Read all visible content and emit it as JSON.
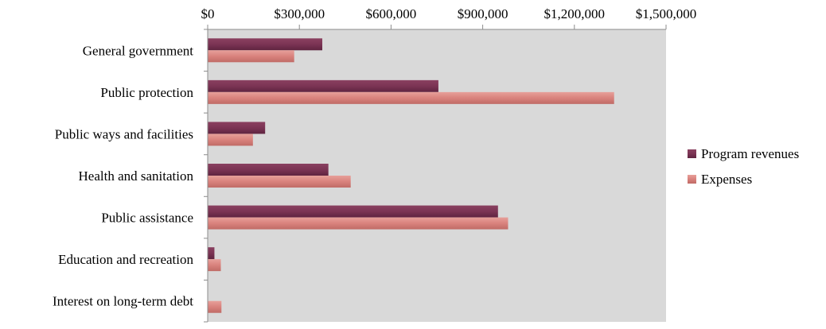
{
  "chart_data": {
    "type": "bar",
    "orientation": "horizontal",
    "categories": [
      "General government",
      "Public protection",
      "Public ways and facilities",
      "Health and sanitation",
      "Public assistance",
      "Education and recreation",
      "Interest on long-term debt"
    ],
    "series": [
      {
        "name": "Program revenues",
        "color": "#7b3454",
        "values": [
          375000,
          755000,
          188000,
          395000,
          950000,
          22000,
          0
        ]
      },
      {
        "name": "Expenses",
        "color": "#d9827d",
        "values": [
          283000,
          1330000,
          148000,
          468000,
          983000,
          43000,
          45000
        ]
      }
    ],
    "x_ticks": [
      "$0",
      "$300,000",
      "$600,000",
      "$900,000",
      "$1,200,000",
      "$1,500,000"
    ],
    "xlim": [
      0,
      1500000
    ],
    "xaxis_position": "top",
    "grid": false,
    "plot_background": "#d9d9d9",
    "legend_position": "right",
    "title": "",
    "xlabel": "",
    "ylabel": ""
  }
}
